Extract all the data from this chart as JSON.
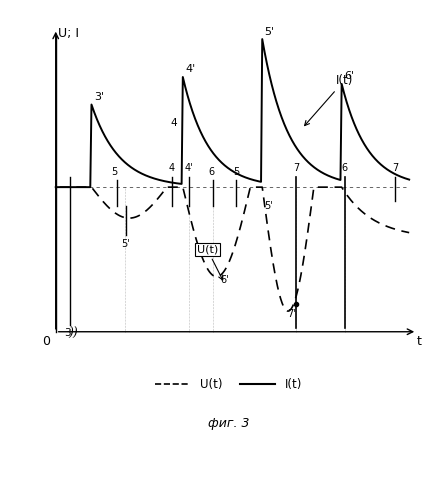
{
  "ylabel": "U; I",
  "xlabel": "t",
  "legend_dashed": "U(t)",
  "legend_solid": "I(t)",
  "annotation_It": "I(t)",
  "annotation_Ut": "U(t)",
  "fig_caption": "фиг. 3",
  "background_color": "#ffffff"
}
